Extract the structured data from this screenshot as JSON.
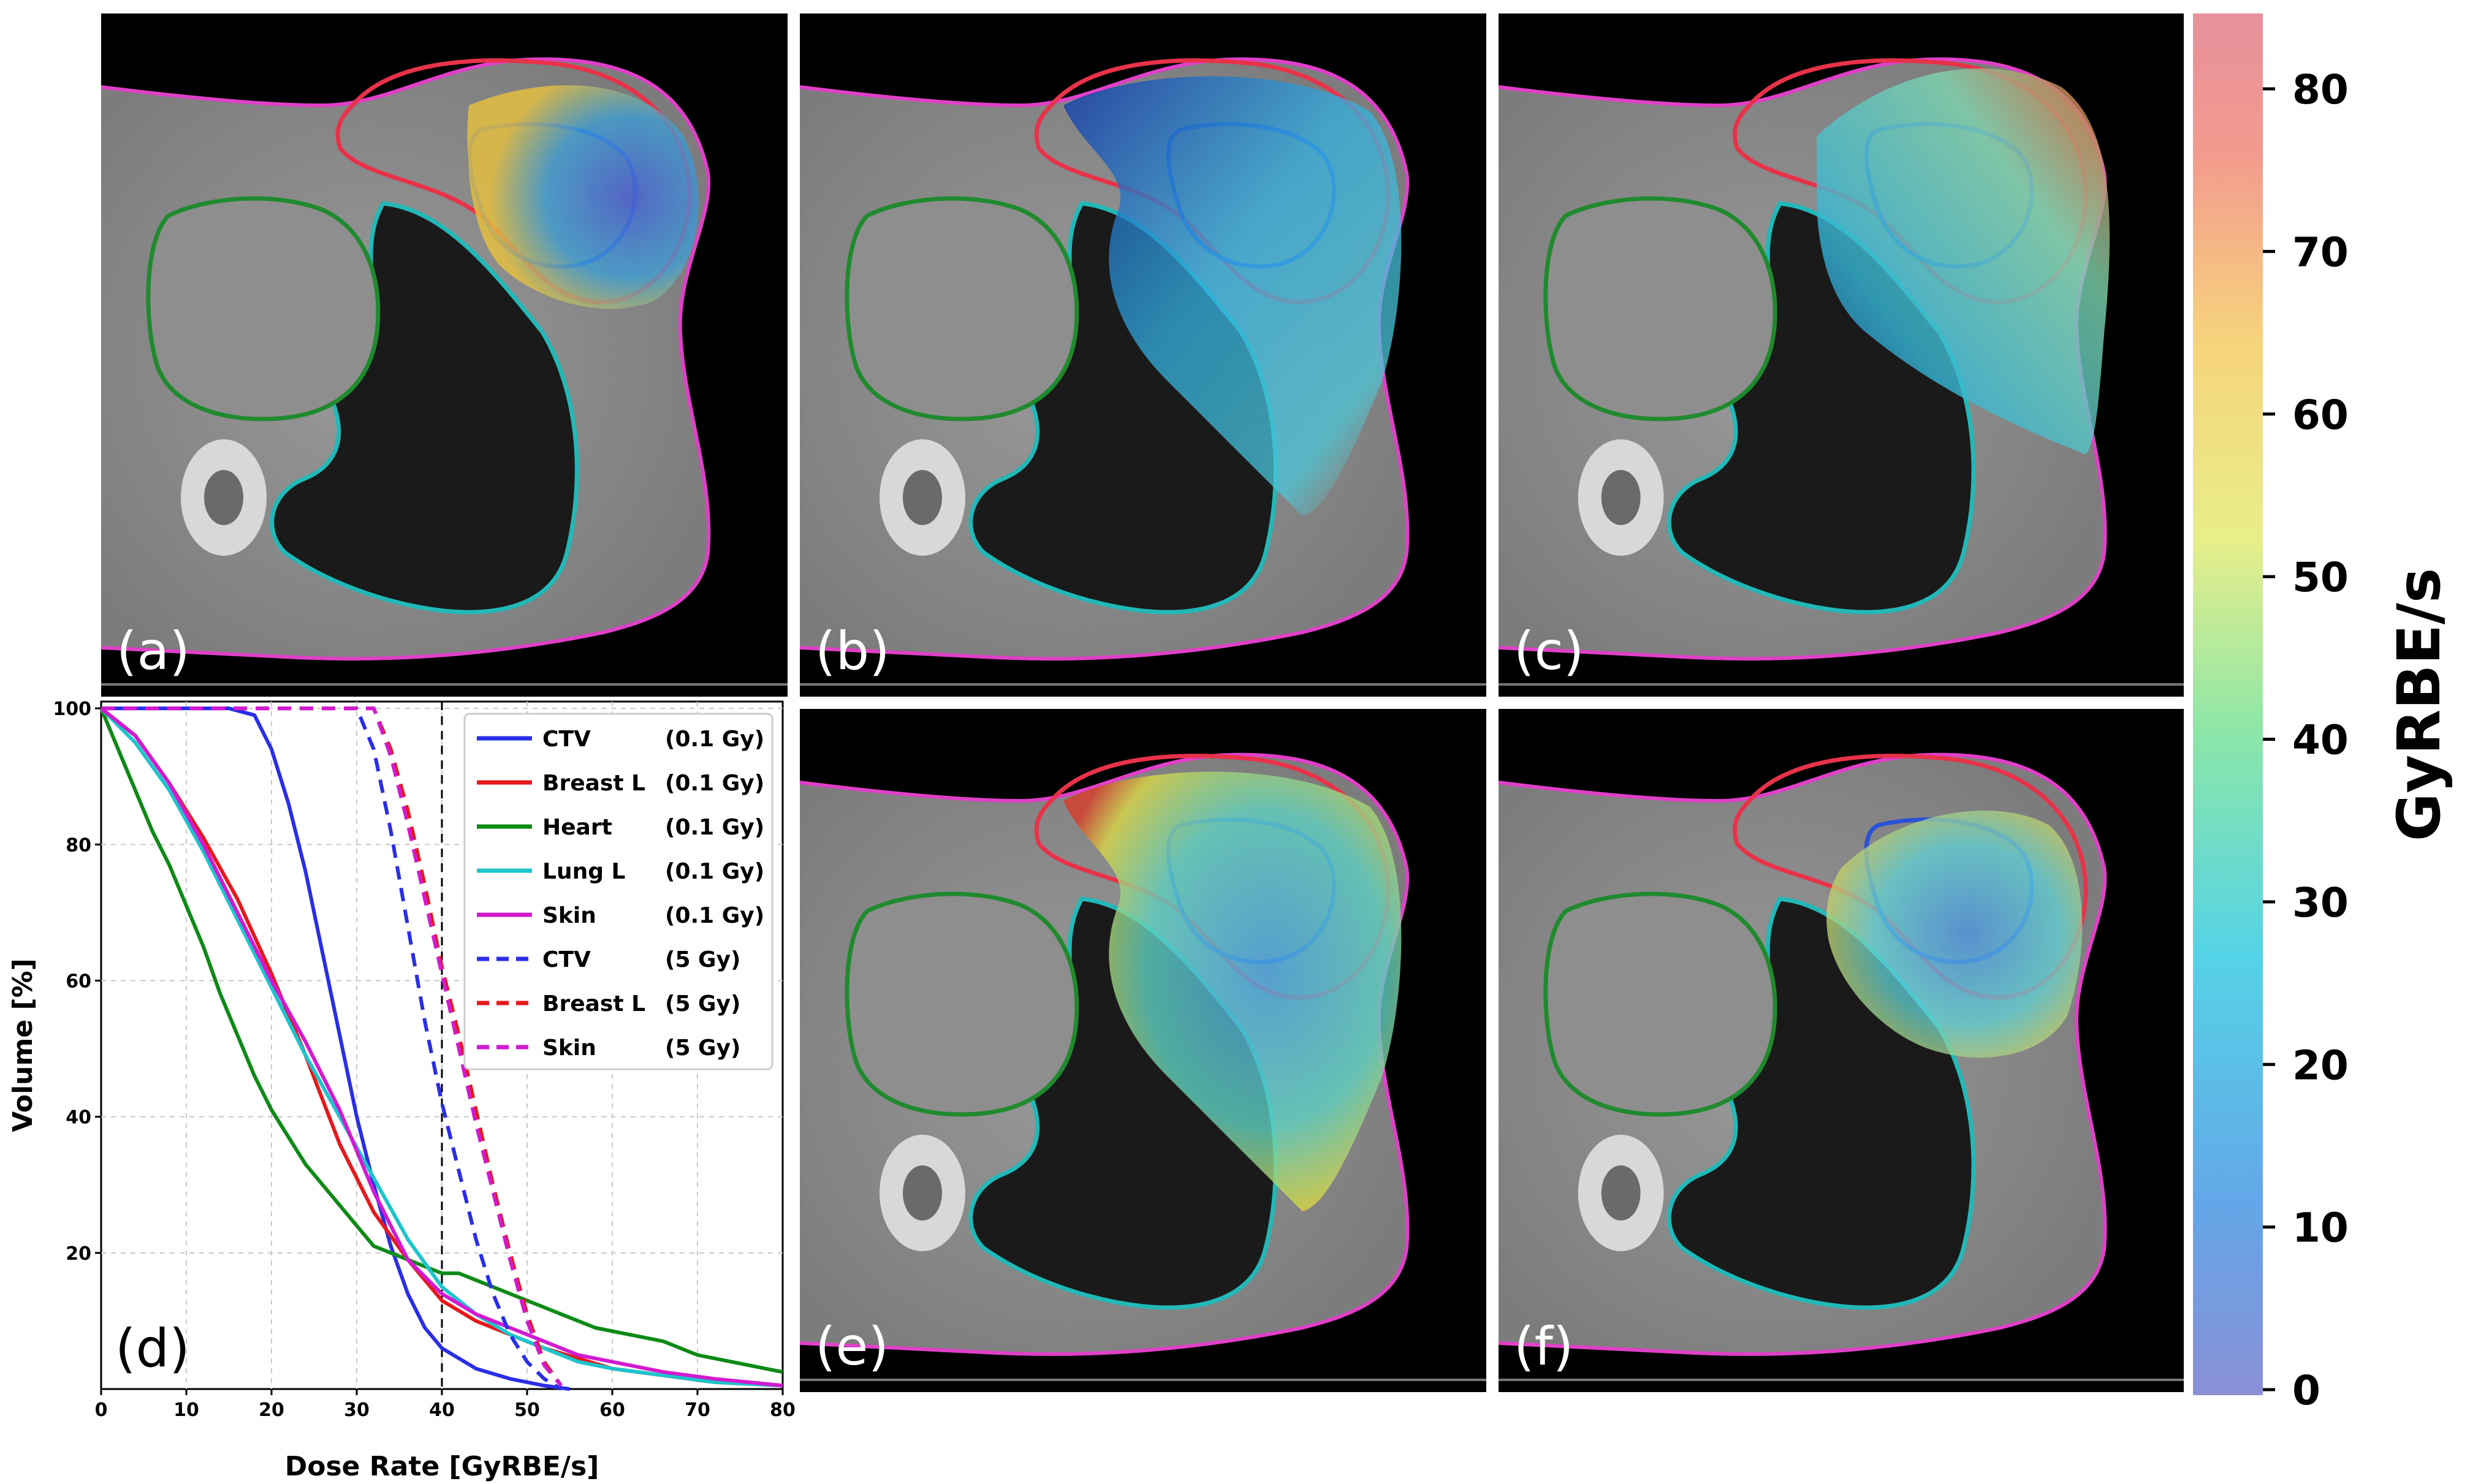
{
  "panels": [
    {
      "id": "a",
      "label": "(a)"
    },
    {
      "id": "b",
      "label": "(b)"
    },
    {
      "id": "c",
      "label": "(c)"
    },
    {
      "id": "e",
      "label": "(e)"
    },
    {
      "id": "f",
      "label": "(f)"
    }
  ],
  "colorbar": {
    "title": "GyRBE/s",
    "ticks": [
      "0",
      "10",
      "20",
      "30",
      "40",
      "50",
      "60",
      "70",
      "80"
    ],
    "colors": [
      "#8a8fd6",
      "#63a7e8",
      "#55d3e6",
      "#8ce6a8",
      "#e8ee8a",
      "#f6d47c",
      "#f39a8e",
      "#e6919c"
    ]
  },
  "contour_colors": {
    "skin": "#e040c8",
    "breast_l": "#e8324a",
    "ctv": "#2a52d6",
    "heart": "#1f8a2e",
    "lung_l": "#22b8b8"
  },
  "chart_data": {
    "type": "line",
    "panel_label": "(d)",
    "xlabel": "Dose Rate [GyRBE/s]",
    "ylabel": "Volume [%]",
    "xlim": [
      0,
      80
    ],
    "ylim": [
      0,
      101
    ],
    "xticks": [
      "0",
      "10",
      "20",
      "30",
      "40",
      "50",
      "60",
      "70",
      "80"
    ],
    "yticks": [
      "20",
      "40",
      "60",
      "80",
      "100"
    ],
    "grid": true,
    "legend_position": "top-right",
    "reference_line_x": 40,
    "series": [
      {
        "name": "CTV",
        "dose": "(0.1 Gy)",
        "color": "#2a2ee6",
        "dash": false,
        "x": [
          0,
          15,
          18,
          20,
          22,
          24,
          26,
          28,
          30,
          32,
          34,
          36,
          38,
          40,
          44,
          48,
          52,
          55
        ],
        "y": [
          100,
          100,
          99,
          94,
          86,
          76,
          64,
          52,
          40,
          30,
          21,
          14,
          9,
          6,
          3,
          1.5,
          0.5,
          0
        ]
      },
      {
        "name": "Breast L",
        "dose": "(0.1 Gy)",
        "color": "#e6191c",
        "dash": false,
        "x": [
          0,
          4,
          8,
          12,
          16,
          20,
          24,
          28,
          32,
          36,
          40,
          44,
          48,
          52,
          56,
          60,
          66,
          72,
          80
        ],
        "y": [
          100,
          96,
          89,
          81,
          72,
          61,
          49,
          36,
          26,
          19,
          13,
          10,
          8,
          6,
          4.5,
          3,
          2,
          1,
          0.5
        ]
      },
      {
        "name": "Heart",
        "dose": "(0.1 Gy)",
        "color": "#0e8a16",
        "dash": false,
        "x": [
          0,
          2,
          4,
          6,
          8,
          10,
          12,
          14,
          16,
          18,
          20,
          22,
          24,
          26,
          28,
          30,
          32,
          34,
          36,
          38,
          40,
          42,
          44,
          46,
          48,
          50,
          54,
          58,
          62,
          66,
          70,
          74,
          78,
          80
        ],
        "y": [
          100,
          94,
          88,
          82,
          77,
          71,
          65,
          58,
          52,
          46,
          41,
          37,
          33,
          30,
          27,
          24,
          21,
          20,
          19,
          18,
          17,
          17,
          16,
          15,
          14,
          13,
          11,
          9,
          8,
          7,
          5,
          4,
          3,
          2.5
        ]
      },
      {
        "name": "Lung L",
        "dose": "(0.1 Gy)",
        "color": "#1dc4cc",
        "dash": false,
        "x": [
          0,
          4,
          8,
          12,
          16,
          20,
          24,
          28,
          32,
          36,
          40,
          44,
          48,
          52,
          56,
          60,
          66,
          72,
          80
        ],
        "y": [
          100,
          95,
          88,
          79,
          69,
          59,
          49,
          40,
          31,
          22,
          15,
          11,
          8,
          6,
          4,
          3,
          2,
          1,
          0.5
        ]
      },
      {
        "name": "Skin",
        "dose": "(0.1 Gy)",
        "color": "#d21ad0",
        "dash": false,
        "x": [
          0,
          4,
          8,
          12,
          16,
          20,
          24,
          26,
          28,
          30,
          32,
          34,
          36,
          40,
          44,
          48,
          52,
          56,
          60,
          66,
          72,
          80
        ],
        "y": [
          100,
          96,
          89,
          80,
          70,
          60,
          51,
          46,
          41,
          35,
          29,
          24,
          19,
          14,
          11,
          9,
          7,
          5,
          4,
          2.5,
          1.5,
          0.5
        ]
      },
      {
        "name": "CTV",
        "dose": "(5 Gy)",
        "color": "#2a2ee6",
        "dash": true,
        "x": [
          0,
          30,
          32,
          34,
          36,
          38,
          40,
          42,
          44,
          46,
          48,
          50,
          52,
          54
        ],
        "y": [
          100,
          100,
          94,
          82,
          68,
          54,
          42,
          32,
          22,
          14,
          8,
          4,
          1.5,
          0
        ]
      },
      {
        "name": "Breast L",
        "dose": "(5 Gy)",
        "color": "#e6191c",
        "dash": true,
        "x": [
          0,
          32,
          34,
          36,
          38,
          40,
          42,
          44,
          46,
          48,
          50,
          52,
          54
        ],
        "y": [
          100,
          100,
          94,
          85,
          74,
          62,
          52,
          41,
          30,
          20,
          11,
          4,
          0.5
        ]
      },
      {
        "name": "Skin",
        "dose": "(5 Gy)",
        "color": "#d21ad0",
        "dash": true,
        "x": [
          0,
          32,
          34,
          36,
          38,
          40,
          42,
          44,
          46,
          48,
          50,
          52,
          54
        ],
        "y": [
          100,
          100,
          93,
          83,
          72,
          61,
          50,
          39,
          29,
          19,
          10,
          3.5,
          0.5
        ]
      }
    ]
  }
}
